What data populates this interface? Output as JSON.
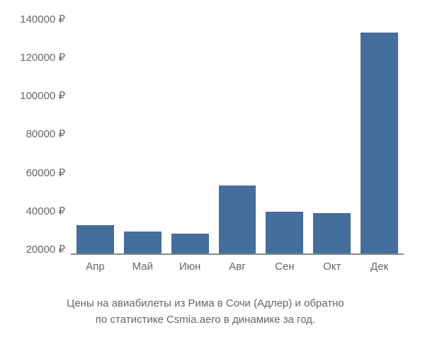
{
  "chart": {
    "type": "bar",
    "categories": [
      "Апр",
      "Май",
      "Июн",
      "Авг",
      "Сен",
      "Окт",
      "Дек"
    ],
    "values": [
      34000,
      31000,
      30000,
      54000,
      41000,
      40000,
      130000
    ],
    "bar_color": "#446e9b",
    "y_ticks": [
      140000,
      120000,
      100000,
      80000,
      60000,
      40000,
      20000
    ],
    "y_tick_labels": [
      "140000 ₽",
      "120000 ₽",
      "100000 ₽",
      "80000 ₽",
      "60000 ₽",
      "40000 ₽",
      "20000 ₽"
    ],
    "y_min": 20000,
    "y_max": 140000,
    "axis_color": "#888888",
    "tick_text_color": "#666666",
    "tick_fontsize": 15,
    "background_color": "#ffffff"
  },
  "caption": {
    "line1": "Цены на авиабилеты из Рима в Сочи (Адлер) и обратно",
    "line2": "по статистике Csmia.aero в динамике за год.",
    "fontsize": 15,
    "color": "#666666"
  }
}
